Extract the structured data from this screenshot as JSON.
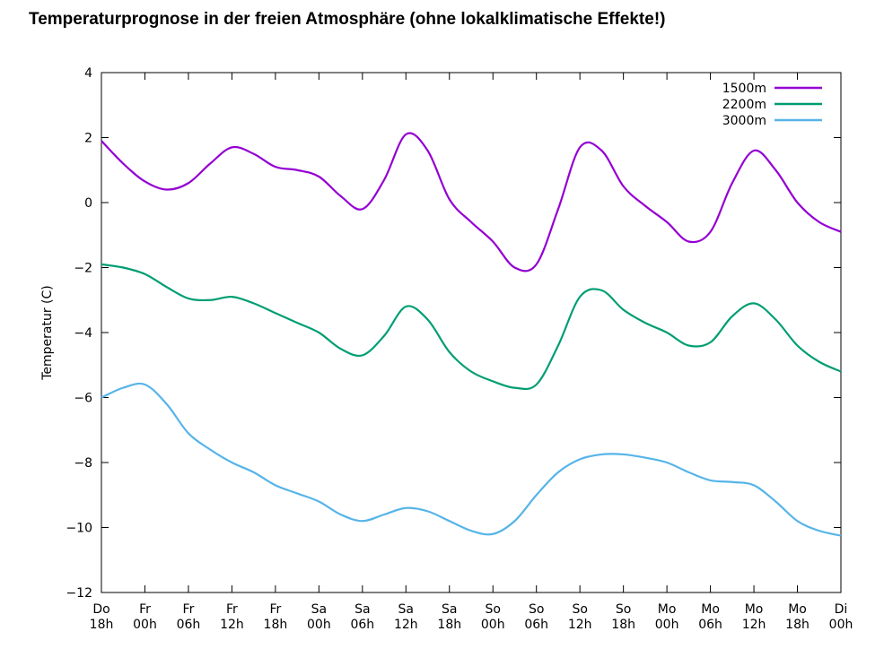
{
  "chart_data": {
    "type": "line",
    "title": "Temperaturprognose in der freien Atmosphäre (ohne lokalklimatische Effekte!)",
    "y_label": "Temperatur (C)",
    "categories": [
      [
        "Do",
        "18h"
      ],
      null,
      [
        "Fr",
        "00h"
      ],
      null,
      [
        "Fr",
        "06h"
      ],
      null,
      [
        "Fr",
        "12h"
      ],
      null,
      [
        "Fr",
        "18h"
      ],
      null,
      [
        "Sa",
        "00h"
      ],
      null,
      [
        "Sa",
        "06h"
      ],
      null,
      [
        "Sa",
        "12h"
      ],
      null,
      [
        "Sa",
        "18h"
      ],
      null,
      [
        "So",
        "00h"
      ],
      null,
      [
        "So",
        "06h"
      ],
      null,
      [
        "So",
        "12h"
      ],
      null,
      [
        "So",
        "18h"
      ],
      null,
      [
        "Mo",
        "00h"
      ],
      null,
      [
        "Mo",
        "06h"
      ],
      null,
      [
        "Mo",
        "12h"
      ],
      null,
      [
        "Mo",
        "18h"
      ],
      null,
      [
        "Di",
        "00h"
      ]
    ],
    "series": [
      {
        "name": "1500m",
        "color": "#9400d3",
        "values": [
          1.9,
          1.2,
          0.65,
          0.4,
          0.6,
          1.2,
          1.7,
          1.5,
          1.1,
          1.0,
          0.8,
          0.2,
          -0.2,
          0.7,
          2.1,
          1.6,
          0.1,
          -0.6,
          -1.2,
          -2.0,
          -1.9,
          -0.2,
          1.7,
          1.6,
          0.5,
          -0.1,
          -0.6,
          -1.2,
          -0.9,
          0.6,
          1.6,
          1.0,
          0.0,
          -0.6,
          -0.9
        ]
      },
      {
        "name": "2200m",
        "color": "#009e73",
        "values": [
          -1.9,
          -2.0,
          -2.2,
          -2.6,
          -2.95,
          -3.0,
          -2.9,
          -3.1,
          -3.4,
          -3.7,
          -4.0,
          -4.5,
          -4.7,
          -4.1,
          -3.2,
          -3.6,
          -4.6,
          -5.2,
          -5.5,
          -5.7,
          -5.6,
          -4.4,
          -2.9,
          -2.7,
          -3.3,
          -3.7,
          -4.0,
          -4.4,
          -4.3,
          -3.5,
          -3.1,
          -3.6,
          -4.4,
          -4.9,
          -5.2
        ]
      },
      {
        "name": "3000m",
        "color": "#56b4e9",
        "values": [
          -6.0,
          -5.7,
          -5.6,
          -6.2,
          -7.1,
          -7.6,
          -8.0,
          -8.3,
          -8.7,
          -8.95,
          -9.2,
          -9.6,
          -9.8,
          -9.6,
          -9.4,
          -9.5,
          -9.8,
          -10.1,
          -10.2,
          -9.8,
          -9.0,
          -8.3,
          -7.9,
          -7.75,
          -7.75,
          -7.85,
          -8.0,
          -8.3,
          -8.55,
          -8.6,
          -8.7,
          -9.2,
          -9.8,
          -10.1,
          -10.25
        ]
      }
    ],
    "ylim": [
      -12,
      4
    ],
    "yticks": [
      {
        "value": -12,
        "label": "−12"
      },
      {
        "value": -10,
        "label": "−10"
      },
      {
        "value": -8,
        "label": "−8"
      },
      {
        "value": -6,
        "label": "−6"
      },
      {
        "value": -4,
        "label": "−4"
      },
      {
        "value": -2,
        "label": "−2"
      },
      0,
      2,
      4
    ],
    "legend": "top-right",
    "grid": false
  }
}
